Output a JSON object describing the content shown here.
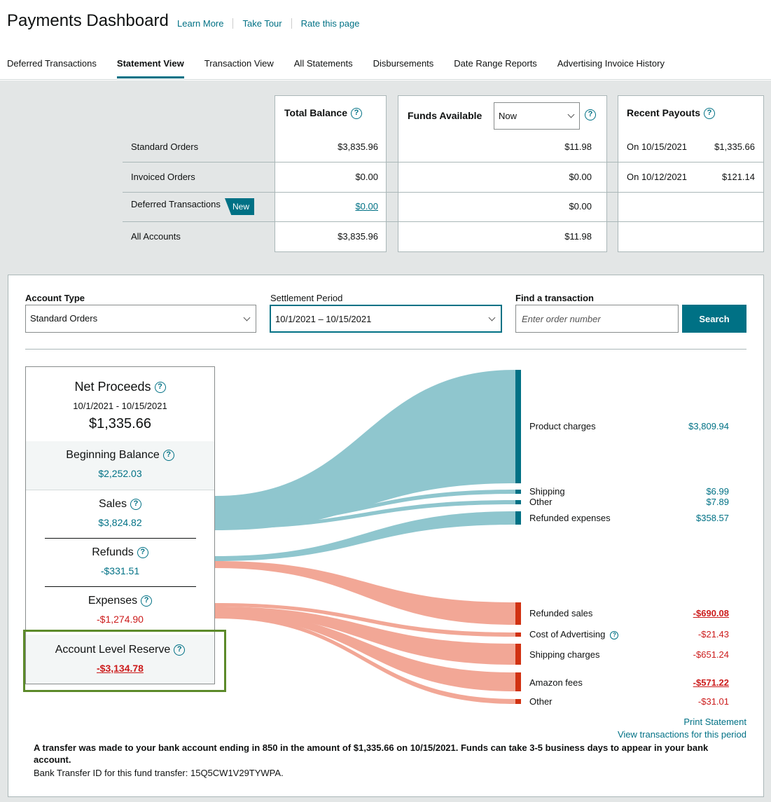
{
  "header": {
    "title": "Payments Dashboard",
    "links": [
      "Learn More",
      "Take Tour",
      "Rate this page"
    ]
  },
  "tabs": [
    {
      "label": "Deferred Transactions",
      "active": false
    },
    {
      "label": "Statement View",
      "active": true
    },
    {
      "label": "Transaction View",
      "active": false
    },
    {
      "label": "All Statements",
      "active": false
    },
    {
      "label": "Disbursements",
      "active": false
    },
    {
      "label": "Date Range Reports",
      "active": false
    },
    {
      "label": "Advertising Invoice History",
      "active": false
    }
  ],
  "summary": {
    "total_balance_title": "Total Balance",
    "funds_available_title": "Funds Available",
    "funds_select_value": "Now",
    "recent_payouts_title": "Recent Payouts",
    "rows": [
      {
        "label": "Standard Orders",
        "total": "$3,835.96",
        "funds": "$11.98"
      },
      {
        "label": "Invoiced Orders",
        "total": "$0.00",
        "funds": "$0.00"
      },
      {
        "label": "Deferred Transactions",
        "total": "$0.00",
        "funds": "$0.00",
        "badge": "New"
      },
      {
        "label": "All Accounts",
        "total": "$3,835.96",
        "funds": "$11.98"
      }
    ],
    "payouts": [
      {
        "date": "On 10/15/2021",
        "amount": "$1,335.66"
      },
      {
        "date": "On 10/12/2021",
        "amount": "$121.14"
      }
    ]
  },
  "filters": {
    "account_type_label": "Account Type",
    "account_type_value": "Standard Orders",
    "settlement_label": "Settlement Period",
    "settlement_value": "10/1/2021 – 10/15/2021",
    "find_label": "Find a transaction",
    "find_placeholder": "Enter order number",
    "search_button": "Search"
  },
  "card": {
    "net_title": "Net Proceeds",
    "net_period": "10/1/2021 - 10/15/2021",
    "net_amount": "$1,335.66",
    "beginning_title": "Beginning Balance",
    "beginning_amount": "$2,252.03",
    "sales_title": "Sales",
    "sales_amount": "$3,824.82",
    "refunds_title": "Refunds",
    "refunds_amount": "-$331.51",
    "expenses_title": "Expenses",
    "expenses_amount": "-$1,274.90",
    "reserve_title": "Account Level Reserve",
    "reserve_amount": "-$3,134.78"
  },
  "flows": {
    "credits": [
      {
        "label": "Product charges",
        "value": "$3,809.94"
      },
      {
        "label": "Shipping",
        "value": "$6.99"
      },
      {
        "label": "Other",
        "value": "$7.89"
      },
      {
        "label": "Refunded expenses",
        "value": "$358.57"
      }
    ],
    "debits": [
      {
        "label": "Refunded sales",
        "value": "-$690.08"
      },
      {
        "label": "Cost of Advertising",
        "value": "-$21.43"
      },
      {
        "label": "Shipping charges",
        "value": "-$651.24"
      },
      {
        "label": "Amazon fees",
        "value": "-$571.22"
      },
      {
        "label": "Other",
        "value": "-$31.01"
      }
    ]
  },
  "footer": {
    "print_statement": "Print Statement",
    "view_transactions": "View transactions for this period",
    "transfer_note": "A transfer was made to your bank account ending in 850 in the amount of $1,335.66 on 10/15/2021. Funds can take 3-5 business days to appear in your bank account.",
    "transfer_id": "Bank Transfer ID for this fund transfer: 15Q5CW1V29TYWPA."
  },
  "colors": {
    "accent": "#007185",
    "credit_flow": "#8fc6ce",
    "debit_flow": "#f2a796",
    "debit_bar": "#d13212",
    "negative_text": "#cc1c1c",
    "highlight_border": "#5c8a2a"
  }
}
